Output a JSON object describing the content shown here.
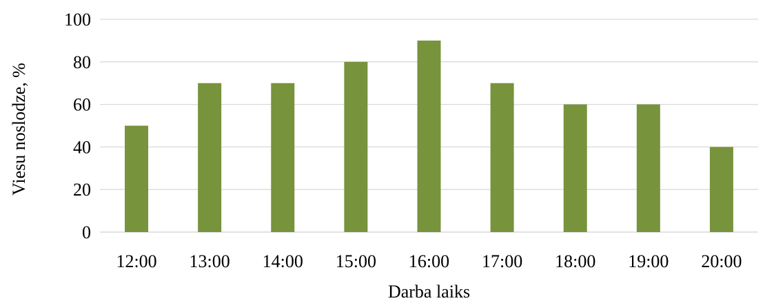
{
  "chart_data": {
    "type": "bar",
    "categories": [
      "12:00",
      "13:00",
      "14:00",
      "15:00",
      "16:00",
      "17:00",
      "18:00",
      "19:00",
      "20:00"
    ],
    "values": [
      50,
      70,
      70,
      80,
      90,
      70,
      60,
      60,
      40
    ],
    "yticks": [
      "0",
      "20",
      "40",
      "60",
      "80",
      "100"
    ],
    "ylim": [
      0,
      100
    ],
    "xlabel": "Darba laiks",
    "ylabel": "Viesu noslodze, %",
    "grid": true,
    "legend": "none",
    "bar_color": "#77933c",
    "grid_color": "#d9d9d9"
  }
}
